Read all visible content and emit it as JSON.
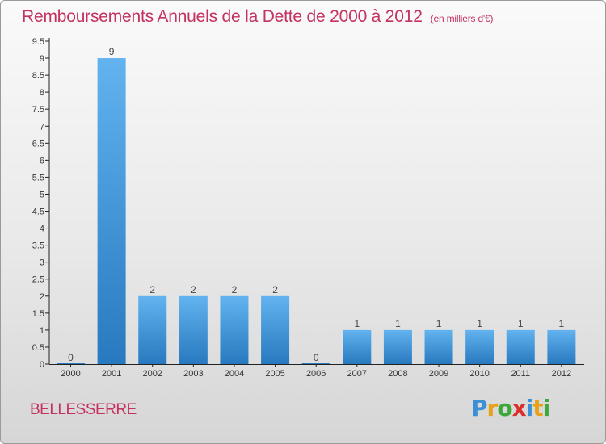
{
  "title": "Remboursements Annuels de la Dette de 2000 à 2012",
  "subtitle": "(en milliers d'€)",
  "commune": "BELLESSERRE",
  "logo": {
    "p": "P",
    "r": "r",
    "o": "o",
    "x": "x",
    "i1": "i",
    "t": "t",
    "i2": "i"
  },
  "colors": {
    "accent": "#c4325f",
    "bar_top": "#62b3ef",
    "bar_bottom": "#2879bf"
  },
  "chart_data": {
    "type": "bar",
    "title": "Remboursements Annuels de la Dette de 2000 à 2012",
    "xlabel": "",
    "ylabel": "",
    "categories": [
      "2000",
      "2001",
      "2002",
      "2003",
      "2004",
      "2005",
      "2006",
      "2007",
      "2008",
      "2009",
      "2010",
      "2011",
      "2012"
    ],
    "values": [
      0,
      9,
      2,
      2,
      2,
      2,
      0,
      1,
      1,
      1,
      1,
      1,
      1
    ],
    "value_labels": [
      "0",
      "9",
      "2",
      "2",
      "2",
      "2",
      "0",
      "1",
      "1",
      "1",
      "1",
      "1",
      "1"
    ],
    "ylim": [
      0,
      9.5
    ],
    "yticks": [
      0,
      0.5,
      1,
      1.5,
      2,
      2.5,
      3,
      3.5,
      4,
      4.5,
      5,
      5.5,
      6,
      6.5,
      7,
      7.5,
      8,
      8.5,
      9,
      9.5
    ],
    "ytick_labels": [
      "0",
      "0.5",
      "1",
      "1.5",
      "2",
      "2.5",
      "3",
      "3.5",
      "4",
      "4.5",
      "5",
      "5.5",
      "6",
      "6.5",
      "7",
      "7.5",
      "8",
      "8.5",
      "9",
      "9.5"
    ],
    "grid": false,
    "legend": "none"
  }
}
